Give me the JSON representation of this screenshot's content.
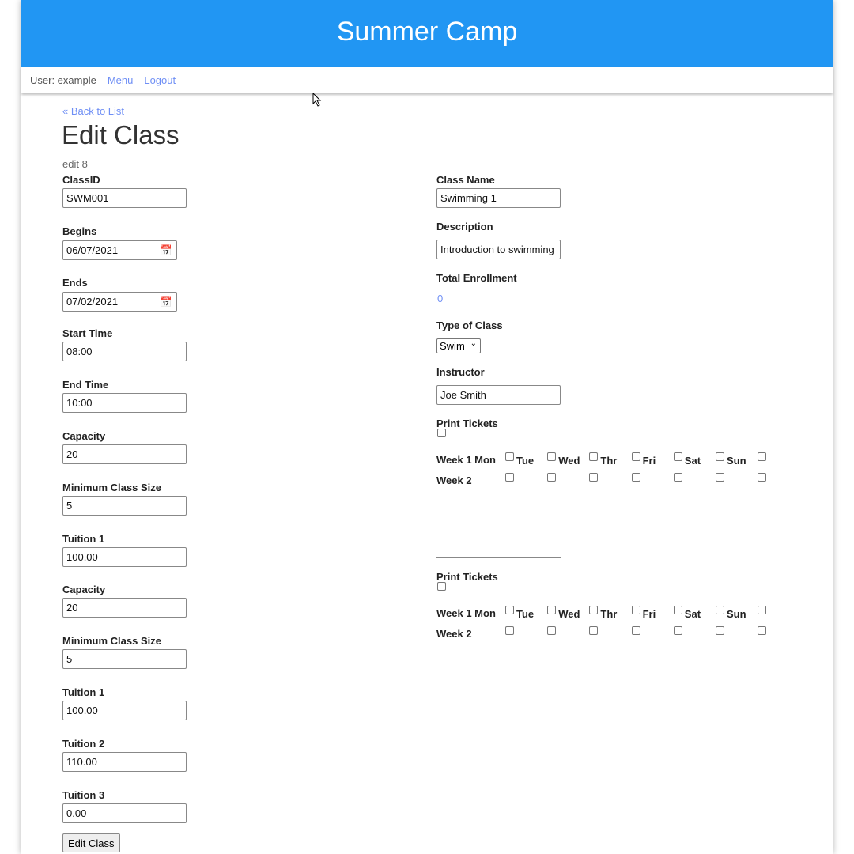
{
  "app": {
    "title": "Summer Camp"
  },
  "nav": {
    "user": "User: example",
    "menu": "Menu",
    "logout": "Logout"
  },
  "back": "« Back to List",
  "title": "Edit Class",
  "subtitle": "edit 8",
  "left": [
    {
      "label": "ClassID",
      "value": "SWM001"
    },
    {
      "label": "Begins",
      "value": "06/07/2021",
      "type": "date"
    },
    {
      "label": "Ends",
      "value": "07/02/2021",
      "type": "date"
    },
    {
      "label": "Start Time",
      "value": "08:00"
    },
    {
      "label": "End Time",
      "value": "10:00"
    },
    {
      "label": "Capacity",
      "value": "20"
    },
    {
      "label": "Minimum Class Size",
      "value": "5"
    },
    {
      "label": "Tuition 1",
      "value": "100.00"
    },
    {
      "label": "Capacity",
      "value": "20"
    },
    {
      "label": "Minimum Class Size",
      "value": "5"
    },
    {
      "label": "Tuition 1",
      "value": "100.00"
    },
    {
      "label": "Tuition 2",
      "value": "110.00"
    },
    {
      "label": "Tuition 3",
      "value": "0.00"
    }
  ],
  "submit": "Edit Class",
  "right": {
    "class_name": {
      "label": "Class Name",
      "value": "Swimming 1"
    },
    "description": {
      "label": "Description",
      "value": "Introduction to swimming"
    },
    "enrollment": {
      "label": "Total Enrollment",
      "value": "0"
    },
    "type": {
      "label": "Type of Class",
      "value": "Swim"
    },
    "instructor": {
      "label": "Instructor",
      "value": "Joe Smith"
    },
    "print_tickets": "Print Tickets",
    "week1": "Week 1 Mon",
    "week2": "Week 2",
    "days": [
      "Tue",
      "Wed",
      "Thr",
      "Fri",
      "Sat",
      "Sun",
      ""
    ]
  },
  "colors": {
    "header": "#2196f3",
    "link": "#6f8ff5"
  }
}
